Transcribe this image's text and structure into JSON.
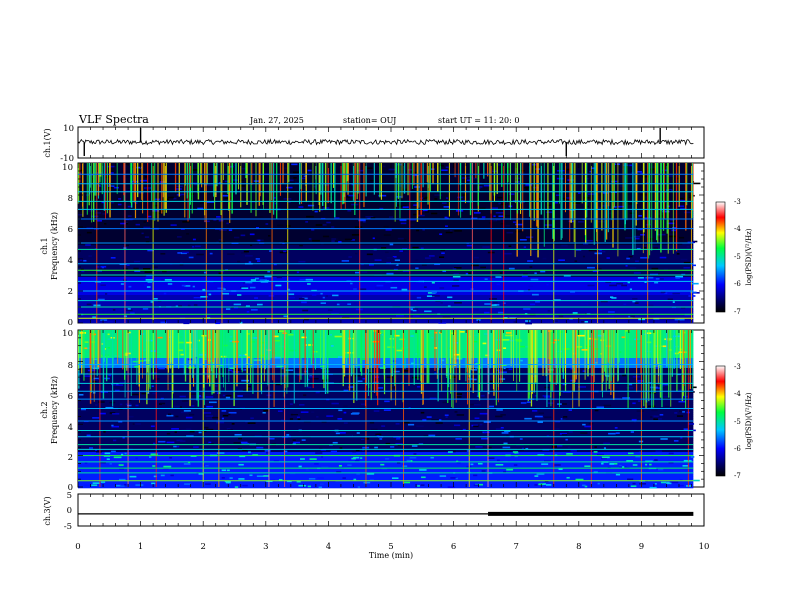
{
  "header": {
    "title": "VLF Spectra",
    "date": "Jan. 27, 2025",
    "station": "station= OUJ",
    "start": "start  UT =   11: 20: 0"
  },
  "colors": {
    "frame": "#000000",
    "trace": "#000000"
  },
  "chart_data": [
    {
      "type": "line",
      "name": "ch.1 waveform",
      "ylabel": "ch.1(V)",
      "yticks": [
        "10",
        "-10"
      ],
      "ylim": [
        -10,
        10
      ],
      "xlim": [
        0,
        10
      ],
      "baseline_v": 0.3,
      "spikes_min": [
        0.1,
        1.0,
        7.8,
        9.3
      ],
      "grid": false
    },
    {
      "type": "heatmap",
      "name": "ch.1 spectrogram",
      "ylabel_top": "ch.1",
      "ylabel": "Frequency (kHz)",
      "xlim": [
        0,
        10
      ],
      "ylim": [
        0,
        10
      ],
      "yticks": [
        "0",
        "2",
        "4",
        "6",
        "8",
        "10"
      ],
      "colorbar": {
        "label": "log(PSD)(V²/Hz)",
        "range": [
          -7,
          -3
        ],
        "ticks": [
          "-3",
          "-4",
          "-5",
          "-6",
          "-7"
        ]
      },
      "description_levels": {
        "background": -6.8,
        "horizontal_lines": -5.2,
        "sferics": -4.0
      }
    },
    {
      "type": "heatmap",
      "name": "ch.2 spectrogram",
      "ylabel_top": "ch.2",
      "ylabel": "Frequency (kHz)",
      "xlim": [
        0,
        10
      ],
      "ylim": [
        0,
        10
      ],
      "yticks": [
        "0",
        "2",
        "4",
        "6",
        "8",
        "10"
      ],
      "colorbar": {
        "label": "log(PSD)(V²/Hz)",
        "range": [
          -7,
          -3
        ],
        "ticks": [
          "-3",
          "-4",
          "-5",
          "-6",
          "-7"
        ]
      },
      "description_levels": {
        "background": -6.5,
        "band_8_10kHz": -5.0,
        "horizontal_lines": -5.2
      }
    },
    {
      "type": "line",
      "name": "ch.3 waveform",
      "ylabel": "ch.3(V)",
      "yticks": [
        "5",
        "0",
        "-5"
      ],
      "ylim": [
        -5,
        5
      ],
      "xlim": [
        0,
        10
      ],
      "level_v": -1.2,
      "thick_from_min": 6.55,
      "xlabel": "Time (min)",
      "xticks": [
        "0",
        "1",
        "2",
        "3",
        "4",
        "5",
        "6",
        "7",
        "8",
        "9",
        "10"
      ]
    }
  ]
}
